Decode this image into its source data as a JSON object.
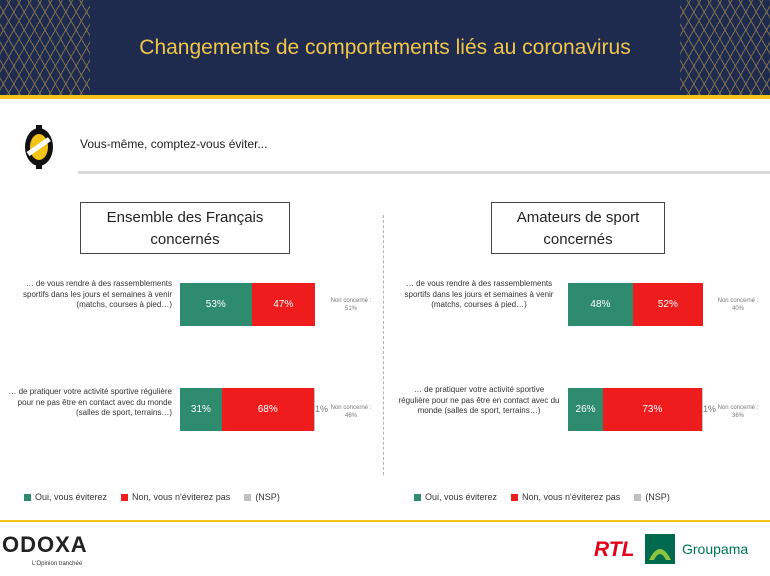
{
  "header": {
    "title": "Changements de comportements liés au coronavirus"
  },
  "question": "Vous-même, comptez-vous éviter...",
  "colors": {
    "oui": "#2e8b6e",
    "non": "#ee1c1c",
    "nsp": "#c0c0c0"
  },
  "chart_data": [
    {
      "type": "bar",
      "stacked": true,
      "orientation": "horizontal",
      "title": "Ensemble des Français concernés",
      "categories": [
        "… de vous rendre à des rassemblements sportifs dans les jours et semaines à venir (matchs, courses à pied…)",
        "… de pratiquer votre activité sportive régulière pour ne pas être en contact avec du monde (salles de sport, terrains…)"
      ],
      "series": [
        {
          "name": "Oui, vous éviterez",
          "values": [
            53,
            31
          ],
          "labels": [
            "53%",
            "31%"
          ]
        },
        {
          "name": "Non, vous n'éviterez pas",
          "values": [
            47,
            68
          ],
          "labels": [
            "47%",
            "68%"
          ]
        },
        {
          "name": "(NSP)",
          "values": [
            0,
            1
          ],
          "labels": [
            "",
            "1%"
          ]
        }
      ],
      "notes": [
        "Non concerné : 51%",
        "Non concerné : 46%"
      ],
      "xlim": [
        0,
        100
      ]
    },
    {
      "type": "bar",
      "stacked": true,
      "orientation": "horizontal",
      "title": "Amateurs de sport concernés",
      "categories": [
        "… de vous rendre à des rassemblements sportifs dans les jours et semaines à venir (matchs, courses à pied…)",
        "… de pratiquer votre activité sportive régulière pour ne pas être en contact avec du monde (salles de sport, terrains…)"
      ],
      "series": [
        {
          "name": "Oui, vous éviterez",
          "values": [
            48,
            26
          ],
          "labels": [
            "48%",
            "26%"
          ]
        },
        {
          "name": "Non, vous n'éviterez pas",
          "values": [
            52,
            73
          ],
          "labels": [
            "52%",
            "73%"
          ]
        },
        {
          "name": "(NSP)",
          "values": [
            0,
            1
          ],
          "labels": [
            "",
            "1%"
          ]
        }
      ],
      "notes": [
        "Non concerné : 40%",
        "Non concerné : 36%"
      ],
      "xlim": [
        0,
        100
      ]
    }
  ],
  "legend": [
    "Oui, vous éviterez",
    "Non, vous n'éviterez pas",
    "(NSP)"
  ],
  "footer": {
    "brand": "ODOXA",
    "tagline": "L'Opinion tranchée",
    "partner1": "RTL",
    "partner2": "Groupama"
  }
}
